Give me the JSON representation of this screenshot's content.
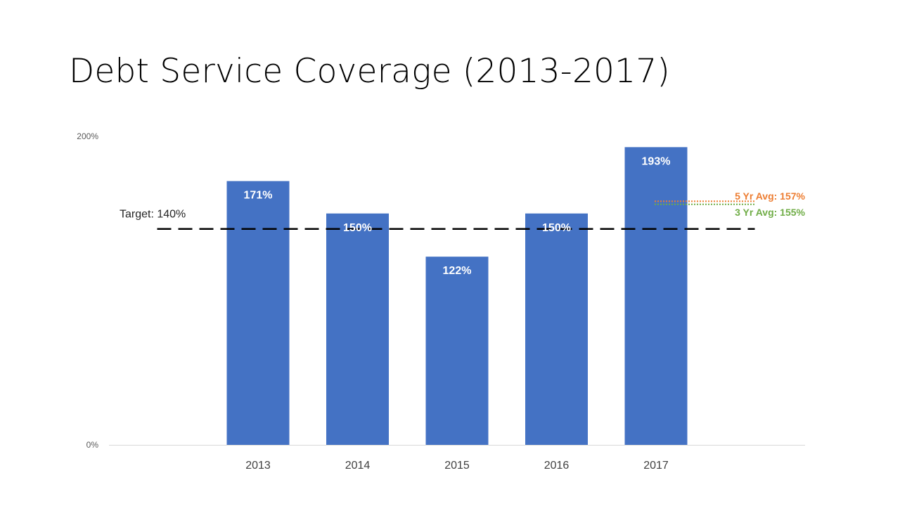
{
  "slide": {
    "title": "Debt Service Coverage (2013-2017)"
  },
  "chart_data": {
    "type": "bar",
    "title": "Debt Service Coverage (2013-2017)",
    "xlabel": "",
    "ylabel": "",
    "categories": [
      "2013",
      "2014",
      "2015",
      "2016",
      "2017"
    ],
    "values": [
      171,
      150,
      122,
      150,
      193
    ],
    "data_labels": [
      "171%",
      "150%",
      "122%",
      "150%",
      "193%"
    ],
    "ylim": [
      0,
      200
    ],
    "y_ticks": [
      0,
      200
    ],
    "y_tick_labels": [
      "0%",
      "200%"
    ],
    "grid": false,
    "colors": {
      "bar": "#4472C4",
      "target_line": "#000000",
      "five_yr_avg": "#ED7D31",
      "three_yr_avg": "#70AD47",
      "axis": "#D9D9D9"
    },
    "reference_lines": {
      "target": {
        "label": "Target: 140%",
        "value": 140,
        "style": "dashed"
      },
      "five_yr_avg": {
        "label": "5 Yr Avg: 157%",
        "value": 157,
        "style": "dotted"
      },
      "three_yr_avg": {
        "label": "3 Yr Avg: 155%",
        "value": 155,
        "style": "dotted"
      }
    }
  }
}
